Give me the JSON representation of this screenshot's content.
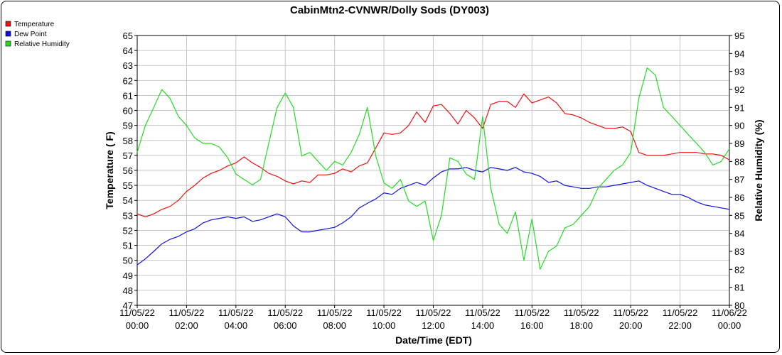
{
  "chart_data": {
    "type": "line",
    "title": "CabinMtn2-CVNWR/Dolly Sods (DY003)",
    "xlabel": "Date/Time (EDT)",
    "ylabel_left": "Temperature ( F)",
    "ylabel_right": "Relative Humidity (%)",
    "ylim_left": [
      47,
      65
    ],
    "ylim_right": [
      80,
      95
    ],
    "xlim_hours": [
      0,
      24
    ],
    "grid": true,
    "legend_placement": "top-left",
    "x_ticks": [
      {
        "date": "11/05/22",
        "time": "00:00"
      },
      {
        "date": "11/05/22",
        "time": "02:00"
      },
      {
        "date": "11/05/22",
        "time": "04:00"
      },
      {
        "date": "11/05/22",
        "time": "06:00"
      },
      {
        "date": "11/05/22",
        "time": "08:00"
      },
      {
        "date": "11/05/22",
        "time": "10:00"
      },
      {
        "date": "11/05/22",
        "time": "12:00"
      },
      {
        "date": "11/05/22",
        "time": "14:00"
      },
      {
        "date": "11/05/22",
        "time": "16:00"
      },
      {
        "date": "11/05/22",
        "time": "18:00"
      },
      {
        "date": "11/05/22",
        "time": "20:00"
      },
      {
        "date": "11/05/22",
        "time": "22:00"
      },
      {
        "date": "11/06/22",
        "time": "00:00"
      }
    ],
    "y_ticks_left": [
      47,
      48,
      49,
      50,
      51,
      52,
      53,
      54,
      55,
      56,
      57,
      58,
      59,
      60,
      61,
      62,
      63,
      64,
      65
    ],
    "y_ticks_right": [
      80,
      81,
      82,
      83,
      84,
      85,
      86,
      87,
      88,
      89,
      90,
      91,
      92,
      93,
      94,
      95
    ],
    "series": [
      {
        "name": "Temperature",
        "color": "#ee1111",
        "axis": "left",
        "points": [
          [
            0,
            53.1
          ],
          [
            0.33,
            52.9
          ],
          [
            0.67,
            53.1
          ],
          [
            1,
            53.4
          ],
          [
            1.33,
            53.6
          ],
          [
            1.67,
            54.0
          ],
          [
            2,
            54.6
          ],
          [
            2.33,
            55.0
          ],
          [
            2.67,
            55.5
          ],
          [
            3,
            55.8
          ],
          [
            3.33,
            56.0
          ],
          [
            3.67,
            56.3
          ],
          [
            4,
            56.5
          ],
          [
            4.33,
            56.9
          ],
          [
            4.67,
            56.5
          ],
          [
            5,
            56.2
          ],
          [
            5.33,
            55.8
          ],
          [
            5.67,
            55.6
          ],
          [
            6,
            55.3
          ],
          [
            6.33,
            55.1
          ],
          [
            6.67,
            55.3
          ],
          [
            7,
            55.2
          ],
          [
            7.33,
            55.7
          ],
          [
            7.67,
            55.7
          ],
          [
            8,
            55.8
          ],
          [
            8.33,
            56.1
          ],
          [
            8.67,
            55.9
          ],
          [
            9,
            56.3
          ],
          [
            9.33,
            56.5
          ],
          [
            9.67,
            57.5
          ],
          [
            10,
            58.5
          ],
          [
            10.33,
            58.4
          ],
          [
            10.67,
            58.5
          ],
          [
            11,
            59.0
          ],
          [
            11.33,
            59.9
          ],
          [
            11.67,
            59.2
          ],
          [
            12,
            60.3
          ],
          [
            12.33,
            60.4
          ],
          [
            12.67,
            59.8
          ],
          [
            13,
            59.1
          ],
          [
            13.33,
            60.0
          ],
          [
            13.67,
            59.5
          ],
          [
            14,
            58.8
          ],
          [
            14.33,
            60.4
          ],
          [
            14.67,
            60.6
          ],
          [
            15,
            60.6
          ],
          [
            15.33,
            60.2
          ],
          [
            15.67,
            61.1
          ],
          [
            16,
            60.5
          ],
          [
            16.33,
            60.7
          ],
          [
            16.67,
            60.9
          ],
          [
            17,
            60.5
          ],
          [
            17.33,
            59.8
          ],
          [
            17.67,
            59.7
          ],
          [
            18,
            59.5
          ],
          [
            18.33,
            59.2
          ],
          [
            18.67,
            59.0
          ],
          [
            19,
            58.8
          ],
          [
            19.33,
            58.8
          ],
          [
            19.67,
            58.9
          ],
          [
            20,
            58.6
          ],
          [
            20.33,
            57.2
          ],
          [
            20.67,
            57.0
          ],
          [
            21,
            57.0
          ],
          [
            21.33,
            57.0
          ],
          [
            21.67,
            57.1
          ],
          [
            22,
            57.2
          ],
          [
            22.33,
            57.2
          ],
          [
            22.67,
            57.2
          ],
          [
            23,
            57.1
          ],
          [
            23.33,
            57.1
          ],
          [
            23.67,
            57.0
          ],
          [
            24,
            56.7
          ]
        ]
      },
      {
        "name": "Dew Point",
        "color": "#1111dd",
        "axis": "left",
        "points": [
          [
            0,
            49.7
          ],
          [
            0.33,
            50.1
          ],
          [
            0.67,
            50.6
          ],
          [
            1,
            51.1
          ],
          [
            1.33,
            51.4
          ],
          [
            1.67,
            51.6
          ],
          [
            2,
            51.9
          ],
          [
            2.33,
            52.1
          ],
          [
            2.67,
            52.5
          ],
          [
            3,
            52.7
          ],
          [
            3.33,
            52.8
          ],
          [
            3.67,
            52.9
          ],
          [
            4,
            52.8
          ],
          [
            4.33,
            52.9
          ],
          [
            4.67,
            52.6
          ],
          [
            5,
            52.7
          ],
          [
            5.33,
            52.9
          ],
          [
            5.67,
            53.1
          ],
          [
            6,
            52.9
          ],
          [
            6.33,
            52.3
          ],
          [
            6.67,
            51.9
          ],
          [
            7,
            51.9
          ],
          [
            7.33,
            52.0
          ],
          [
            7.67,
            52.1
          ],
          [
            8,
            52.2
          ],
          [
            8.33,
            52.5
          ],
          [
            8.67,
            52.9
          ],
          [
            9,
            53.5
          ],
          [
            9.33,
            53.8
          ],
          [
            9.67,
            54.1
          ],
          [
            10,
            54.5
          ],
          [
            10.33,
            54.4
          ],
          [
            10.67,
            54.8
          ],
          [
            11,
            55.0
          ],
          [
            11.33,
            55.2
          ],
          [
            11.67,
            55.0
          ],
          [
            12,
            55.5
          ],
          [
            12.33,
            55.9
          ],
          [
            12.67,
            56.1
          ],
          [
            13,
            56.1
          ],
          [
            13.33,
            56.2
          ],
          [
            13.67,
            56.0
          ],
          [
            14,
            55.9
          ],
          [
            14.33,
            56.2
          ],
          [
            14.67,
            56.1
          ],
          [
            15,
            56.0
          ],
          [
            15.33,
            56.2
          ],
          [
            15.67,
            55.9
          ],
          [
            16,
            55.8
          ],
          [
            16.33,
            55.6
          ],
          [
            16.67,
            55.2
          ],
          [
            17,
            55.3
          ],
          [
            17.33,
            55.0
          ],
          [
            17.67,
            54.9
          ],
          [
            18,
            54.8
          ],
          [
            18.33,
            54.8
          ],
          [
            18.67,
            54.9
          ],
          [
            19,
            54.9
          ],
          [
            19.33,
            55.0
          ],
          [
            19.67,
            55.1
          ],
          [
            20,
            55.2
          ],
          [
            20.33,
            55.3
          ],
          [
            20.67,
            55.0
          ],
          [
            21,
            54.8
          ],
          [
            21.33,
            54.6
          ],
          [
            21.67,
            54.4
          ],
          [
            22,
            54.4
          ],
          [
            22.33,
            54.2
          ],
          [
            22.67,
            53.9
          ],
          [
            23,
            53.7
          ],
          [
            23.33,
            53.6
          ],
          [
            23.67,
            53.5
          ],
          [
            24,
            53.4
          ]
        ]
      },
      {
        "name": "Relative Humidity",
        "color": "#22dd22",
        "axis": "right",
        "points": [
          [
            0,
            88.5
          ],
          [
            0.33,
            90.0
          ],
          [
            0.67,
            91.0
          ],
          [
            1,
            92.0
          ],
          [
            1.33,
            91.5
          ],
          [
            1.67,
            90.5
          ],
          [
            2,
            90.0
          ],
          [
            2.33,
            89.3
          ],
          [
            2.67,
            89.0
          ],
          [
            3,
            89.0
          ],
          [
            3.33,
            88.8
          ],
          [
            3.67,
            88.2
          ],
          [
            4,
            87.3
          ],
          [
            4.33,
            87.0
          ],
          [
            4.67,
            86.7
          ],
          [
            5,
            87.0
          ],
          [
            5.33,
            89.0
          ],
          [
            5.67,
            91.0
          ],
          [
            6,
            91.8
          ],
          [
            6.33,
            91.0
          ],
          [
            6.67,
            88.3
          ],
          [
            7,
            88.5
          ],
          [
            7.33,
            88.0
          ],
          [
            7.67,
            87.5
          ],
          [
            8,
            88.0
          ],
          [
            8.33,
            87.8
          ],
          [
            8.67,
            88.5
          ],
          [
            9,
            89.5
          ],
          [
            9.33,
            91.0
          ],
          [
            9.67,
            88.3
          ],
          [
            10,
            86.8
          ],
          [
            10.33,
            86.5
          ],
          [
            10.67,
            87.0
          ],
          [
            11,
            85.8
          ],
          [
            11.33,
            85.5
          ],
          [
            11.67,
            85.8
          ],
          [
            12,
            83.6
          ],
          [
            12.33,
            85.0
          ],
          [
            12.67,
            88.2
          ],
          [
            13,
            88.0
          ],
          [
            13.33,
            87.3
          ],
          [
            13.67,
            87.0
          ],
          [
            14,
            90.5
          ],
          [
            14.33,
            86.5
          ],
          [
            14.67,
            84.5
          ],
          [
            15,
            84.0
          ],
          [
            15.33,
            85.2
          ],
          [
            15.67,
            82.5
          ],
          [
            16,
            84.8
          ],
          [
            16.33,
            82.0
          ],
          [
            16.67,
            83.0
          ],
          [
            17,
            83.3
          ],
          [
            17.33,
            84.3
          ],
          [
            17.67,
            84.5
          ],
          [
            18,
            85.0
          ],
          [
            18.33,
            85.5
          ],
          [
            18.67,
            86.5
          ],
          [
            19,
            87.0
          ],
          [
            19.33,
            87.5
          ],
          [
            19.67,
            87.8
          ],
          [
            20,
            88.5
          ],
          [
            20.33,
            91.5
          ],
          [
            20.67,
            93.2
          ],
          [
            21,
            92.8
          ],
          [
            21.33,
            91.0
          ],
          [
            21.67,
            90.5
          ],
          [
            22,
            90.0
          ],
          [
            22.33,
            89.5
          ],
          [
            22.67,
            89.0
          ],
          [
            23,
            88.5
          ],
          [
            23.33,
            87.8
          ],
          [
            23.67,
            88.0
          ],
          [
            24,
            88.7
          ]
        ]
      }
    ]
  }
}
